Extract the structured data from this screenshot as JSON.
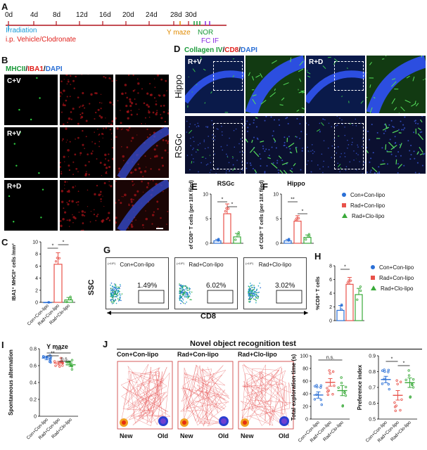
{
  "panels": {
    "A": "A",
    "B": "B",
    "C": "C",
    "D": "D",
    "E": "E",
    "F": "F",
    "G": "G",
    "H": "H",
    "I": "I",
    "J": "J"
  },
  "timeline": {
    "days": [
      "0d",
      "4d",
      "8d",
      "12d",
      "16d",
      "20d",
      "24d",
      "28d",
      "30d"
    ],
    "irradiation": "Irradiation",
    "ip": "i.p. Vehicle/Clodronate",
    "ymaze": "Y maze",
    "nor": "NOR",
    "fcif": "FC IF",
    "colors": {
      "irradiation": "#1a9ad6",
      "ip": "#e0201b",
      "ymaze": "#e08a00",
      "nor": "#1a9a3a",
      "fcif": "#8a2be2"
    }
  },
  "panelB": {
    "title_parts": [
      "MHCII",
      "/",
      "IBA1",
      "/",
      "DAPI"
    ],
    "rows": [
      "C+V",
      "R+V",
      "R+D"
    ]
  },
  "panelD": {
    "title_parts": [
      "Collagen IV",
      "/",
      "CD8",
      "/",
      "DAPI"
    ],
    "rows": [
      "Hippo",
      "RSGc"
    ],
    "labels": [
      "R+V",
      "R+D"
    ]
  },
  "legend_groups": [
    "Con+Con-lipo",
    "Rad+Con-lipo",
    "Rad+Clo-lipo"
  ],
  "group_colors": [
    "#2a6fd6",
    "#e8524a",
    "#3aaa3a"
  ],
  "chart_data": [
    {
      "id": "C",
      "type": "bar",
      "categories": [
        "Con+Con-lipo",
        "Rad+Con-lipo",
        "Rad+Clo-lipo"
      ],
      "values": [
        0,
        6.3,
        0.4
      ],
      "errors": [
        0,
        1.9,
        0.4
      ],
      "ylabel": "IBA1⁺ MHCII⁺ cells /mm²",
      "ylim": [
        0,
        10
      ],
      "yticks": [
        0,
        2,
        4,
        6,
        8,
        10
      ],
      "sig": [
        "*",
        "*"
      ]
    },
    {
      "id": "E",
      "type": "bar",
      "title": "RSGc",
      "categories": [
        "Con+Con-lipo",
        "Rad+Con-lipo",
        "Rad+Clo-lipo"
      ],
      "values": [
        0.5,
        6.0,
        1.3
      ],
      "errors": [
        0.3,
        2.0,
        0.7
      ],
      "ylabel": "No of CD8⁺ T cells (per 10X filed)",
      "ylim": [
        0,
        10
      ],
      "yticks": [
        0,
        5,
        10
      ],
      "sig": [
        "*",
        "*"
      ]
    },
    {
      "id": "F",
      "type": "bar",
      "title": "Hippo",
      "categories": [
        "Con+Con-lipo",
        "Rad+Con-lipo",
        "Rad+Clo-lipo"
      ],
      "values": [
        0.5,
        4.5,
        1.2
      ],
      "errors": [
        0.3,
        1.1,
        0.5
      ],
      "ylabel": "No of CD8⁺ T cells (per 10X filed)",
      "ylim": [
        0,
        10
      ],
      "yticks": [
        0,
        5,
        10
      ],
      "sig": [
        "**",
        "*"
      ]
    },
    {
      "id": "H",
      "type": "bar",
      "categories": [
        "Con+Con-lipo",
        "Rad+Con-lipo",
        "Rad+Clo-lipo"
      ],
      "values": [
        1.5,
        5.3,
        3.8
      ],
      "errors": [
        0.7,
        1.0,
        0.9
      ],
      "ylabel": "%CD8⁺ T cells",
      "ylim": [
        0,
        8
      ],
      "yticks": [
        0,
        2,
        4,
        6,
        8
      ],
      "sig": [
        "*"
      ]
    },
    {
      "id": "I",
      "type": "scatter-mean",
      "title": "Y maze",
      "categories": [
        "Con+Con-lipo",
        "Rad+Con-lipo",
        "Rad+Clo-lipo"
      ],
      "values": [
        0.69,
        0.63,
        0.61
      ],
      "errors": [
        0.02,
        0.02,
        0.02
      ],
      "ylabel": "Spontaneous alternation",
      "ylim": [
        0,
        0.8
      ],
      "yticks": [
        0.0,
        0.2,
        0.4,
        0.6,
        0.8
      ],
      "sig": [
        "**",
        "***",
        "n.s."
      ]
    },
    {
      "id": "J-time",
      "type": "scatter-mean",
      "categories": [
        "Con+Con-lipo",
        "Rad+Con-lipo",
        "Rad+Clo-lipo"
      ],
      "values": [
        38,
        58,
        45
      ],
      "errors": [
        5,
        6,
        8
      ],
      "ylabel": "Total exploration time (s)",
      "ylim": [
        0,
        100
      ],
      "yticks": [
        0,
        20,
        40,
        60,
        80,
        100
      ],
      "sig": [
        "n.s."
      ]
    },
    {
      "id": "J-pref",
      "type": "scatter-mean",
      "categories": [
        "Con+Con-lipo",
        "Rad+Con-lipo",
        "Rad+Clo-lipo"
      ],
      "values": [
        0.75,
        0.65,
        0.73
      ],
      "errors": [
        0.02,
        0.03,
        0.03
      ],
      "ylabel": "Preference index",
      "ylim": [
        0.5,
        0.9
      ],
      "yticks": [
        0.5,
        0.6,
        0.7,
        0.8,
        0.9
      ],
      "sig": [
        "*",
        "*"
      ]
    }
  ],
  "flow": {
    "groups": [
      "Con+Con-lipo",
      "Rad+Con-lipo",
      "Rad+Clo-lipo"
    ],
    "percents": [
      "1.49%",
      "6.02%",
      "3.02%"
    ],
    "xlabel": "CD8",
    "ylabel": "SSC",
    "axis_exp_y": "(×10⁵)",
    "axis_exp_x": "(×10⁴)"
  },
  "nor": {
    "title": "Novel object recognition test",
    "groups": [
      "Con+Con-lipo",
      "Rad+Con-lipo",
      "Rad+Clo-lipo"
    ],
    "new": "New",
    "old": "Old"
  }
}
